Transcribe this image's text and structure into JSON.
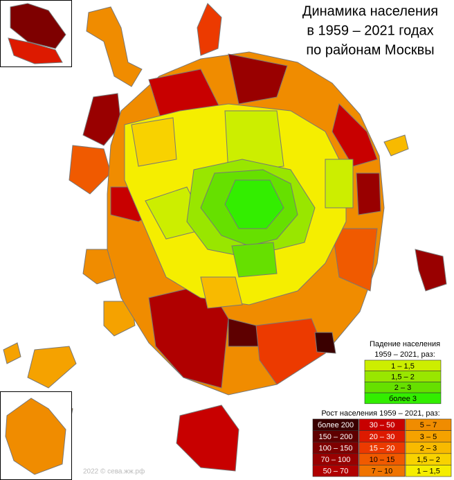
{
  "title": [
    "Динамика населения",
    "в 1959 – 2021 годах",
    "по районам Москвы"
  ],
  "legend_decline": {
    "title": [
      "Падение населения",
      "1959 – 2021, раз:"
    ],
    "items": [
      {
        "label": "1 – 1,5",
        "color": "#ccee00"
      },
      {
        "label": "1,5 – 2",
        "color": "#99e600"
      },
      {
        "label": "2 – 3",
        "color": "#66e000"
      },
      {
        "label": "более 3",
        "color": "#33ee00"
      }
    ]
  },
  "legend_growth": {
    "title": "Рост населения 1959 – 2021, раз:",
    "columns": [
      [
        {
          "label": "более 200",
          "color": "#3a0000"
        },
        {
          "label": "150 – 200",
          "color": "#5e0000"
        },
        {
          "label": "100 – 150",
          "color": "#7e0000"
        },
        {
          "label": "70 – 100",
          "color": "#990000"
        },
        {
          "label": "50 – 70",
          "color": "#b00000"
        }
      ],
      [
        {
          "label": "30 – 50",
          "color": "#c80000"
        },
        {
          "label": "20 – 30",
          "color": "#dd1a00"
        },
        {
          "label": "15 – 20",
          "color": "#ec3a00"
        },
        {
          "label": "10 – 15",
          "color": "#f05a00"
        },
        {
          "label": "7 – 10",
          "color": "#f07400"
        }
      ],
      [
        {
          "label": "5 – 7",
          "color": "#f08c00"
        },
        {
          "label": "3 – 5",
          "color": "#f5a200"
        },
        {
          "label": "2 – 3",
          "color": "#f8ba00"
        },
        {
          "label": "1,5 – 2",
          "color": "#f8d200"
        },
        {
          "label": "1 – 1,5",
          "color": "#f5ee00"
        }
      ]
    ]
  },
  "credit": "2022 © сева.жж.рф"
}
